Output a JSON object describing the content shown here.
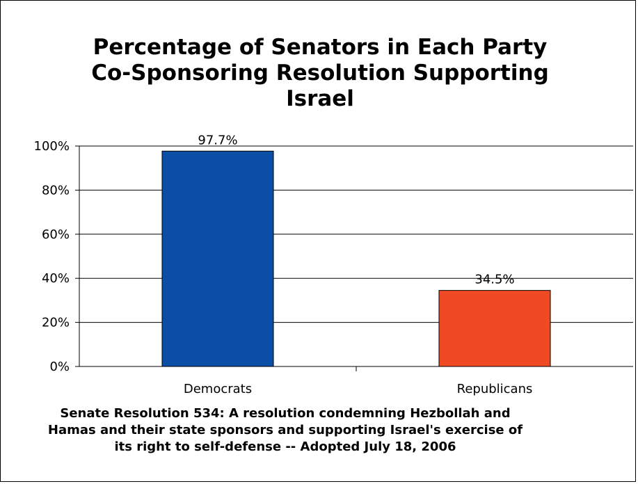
{
  "title_lines": [
    "Percentage of Senators in Each Party",
    "Co-Sponsoring Resolution Supporting",
    "Israel"
  ],
  "caption_lines": [
    "Senate Resolution 534:  A resolution condemning Hezbollah and",
    "Hamas and their state sponsors and supporting Israel's exercise of",
    "its right to self-defense -- Adopted July 18, 2006"
  ],
  "chart_data": {
    "type": "bar",
    "title": "Percentage of Senators in Each Party Co-Sponsoring Resolution Supporting Israel",
    "categories": [
      "Democrats",
      "Republicans"
    ],
    "values": [
      97.7,
      34.5
    ],
    "data_labels": [
      "97.7%",
      "34.5%"
    ],
    "bar_colors": [
      "#0a4ea5",
      "#f04a24"
    ],
    "xlabel": "",
    "ylabel": "",
    "ylim": [
      0,
      100
    ],
    "y_ticks": [
      0,
      20,
      40,
      60,
      80,
      100
    ],
    "y_tick_labels": [
      "0%",
      "20%",
      "40%",
      "60%",
      "80%",
      "100%"
    ],
    "grid": true,
    "legend": "none"
  }
}
